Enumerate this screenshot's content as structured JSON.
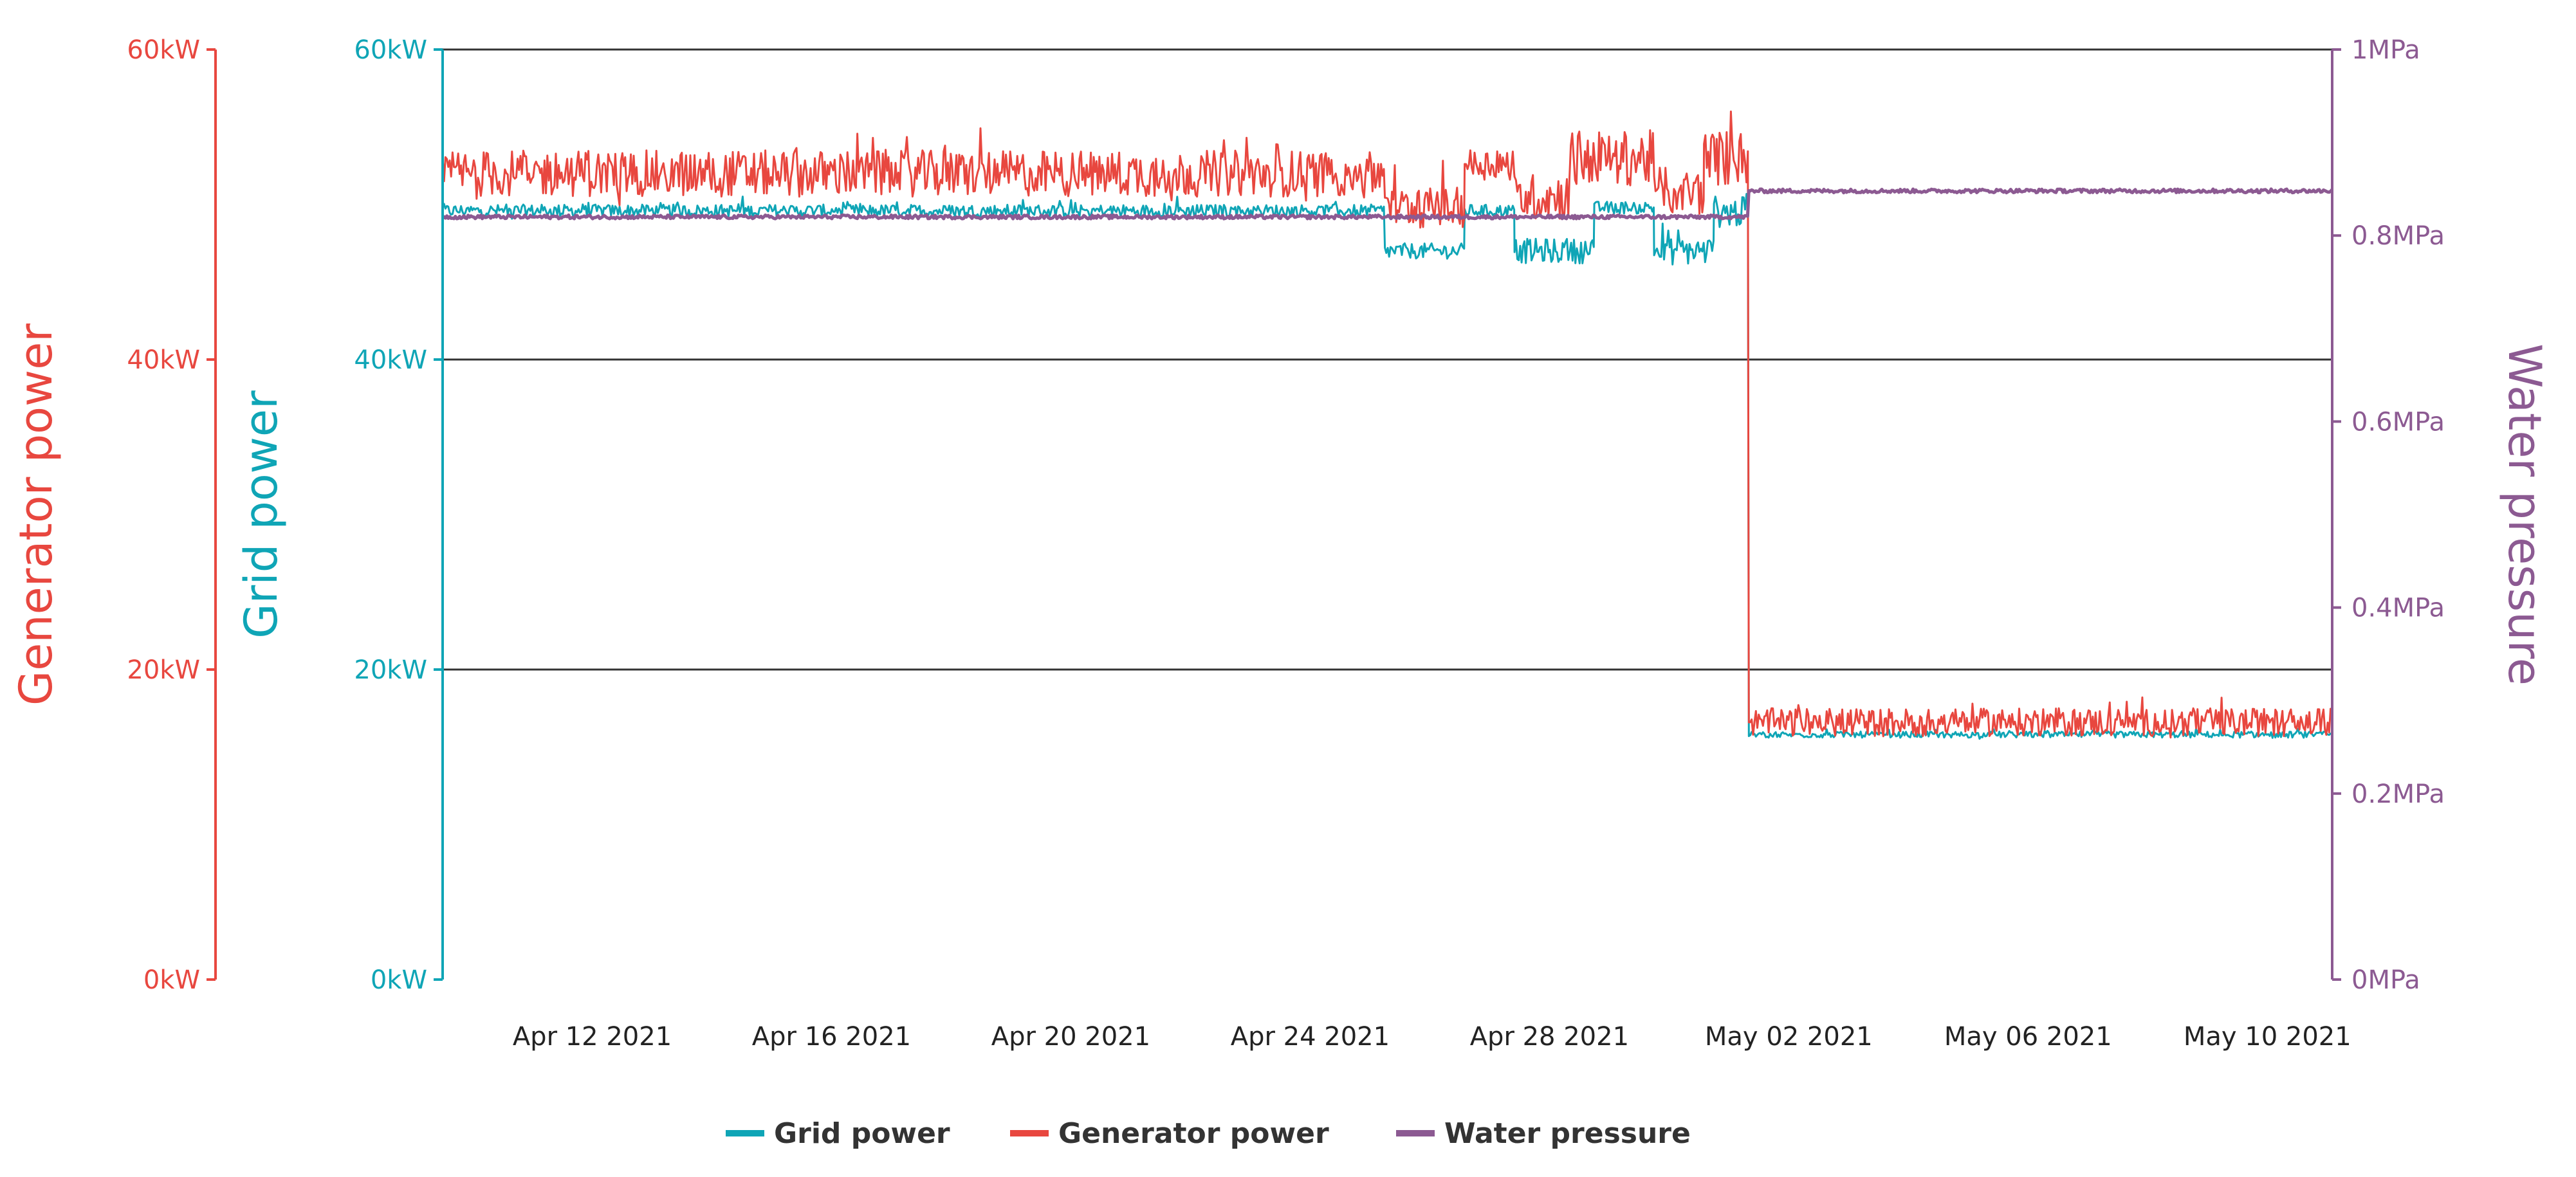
{
  "colors": {
    "generator": "#e8473f",
    "grid": "#0fa5b6",
    "pressure": "#8c5a92",
    "gridline": "#333333",
    "tick_text": "#222222"
  },
  "chart_data": {
    "type": "line",
    "title": "",
    "xlabel": "",
    "x_range": [
      "2021-04-09T12:00",
      "2021-05-11T02:00"
    ],
    "x_ticks": [
      "Apr 12 2021",
      "Apr 16 2021",
      "Apr 20 2021",
      "Apr 24 2021",
      "Apr 28 2021",
      "May 02 2021",
      "May 06 2021",
      "May 10 2021"
    ],
    "axes": {
      "generator": {
        "label": "Generator power",
        "range": [
          0,
          60
        ],
        "ticks": [
          "0kW",
          "20kW",
          "40kW",
          "60kW"
        ],
        "tick_values": [
          0,
          20,
          40,
          60
        ]
      },
      "grid": {
        "label": "Grid power",
        "range": [
          0,
          60
        ],
        "ticks": [
          "0kW",
          "20kW",
          "40kW",
          "60kW"
        ],
        "tick_values": [
          0,
          20,
          40,
          60
        ]
      },
      "pressure": {
        "label": "Water pressure",
        "range": [
          0,
          1
        ],
        "ticks": [
          "0MPa",
          "0.2MPa",
          "0.4MPa",
          "0.6MPa",
          "0.8MPa",
          "1MPa"
        ],
        "tick_values": [
          0,
          0.2,
          0.4,
          0.6,
          0.8,
          1
        ]
      }
    },
    "grid_lines": [
      20,
      40,
      60
    ],
    "series": [
      {
        "name": "Grid power",
        "axis": "grid",
        "color_key": "grid",
        "segments": [
          {
            "from": "2021-04-09T12:00",
            "to": "2021-04-25T06:00",
            "mean": 49.6,
            "jitter": 0.4
          },
          {
            "from": "2021-04-25T06:00",
            "to": "2021-04-26T14:00",
            "mean": 47.0,
            "jitter": 0.5
          },
          {
            "from": "2021-04-26T14:00",
            "to": "2021-04-27T10:00",
            "mean": 49.6,
            "jitter": 0.4
          },
          {
            "from": "2021-04-27T10:00",
            "to": "2021-04-28T18:00",
            "mean": 47.0,
            "jitter": 0.8
          },
          {
            "from": "2021-04-28T18:00",
            "to": "2021-04-29T18:00",
            "mean": 49.8,
            "jitter": 0.4
          },
          {
            "from": "2021-04-29T18:00",
            "to": "2021-04-30T18:00",
            "mean": 47.0,
            "jitter": 0.9
          },
          {
            "from": "2021-04-30T18:00",
            "to": "2021-05-01T08:00",
            "mean": 49.5,
            "jitter": 1.0
          },
          {
            "from": "2021-05-01T08:00",
            "to": "2021-05-11T02:00",
            "mean": 15.8,
            "jitter": 0.2
          }
        ]
      },
      {
        "name": "Generator power",
        "axis": "generator",
        "color_key": "generator",
        "segments": [
          {
            "from": "2021-04-09T12:00",
            "to": "2021-04-25T06:00",
            "mean": 52.0,
            "jitter": 1.5
          },
          {
            "from": "2021-04-25T06:00",
            "to": "2021-04-26T14:00",
            "mean": 49.8,
            "jitter": 1.3
          },
          {
            "from": "2021-04-26T14:00",
            "to": "2021-04-27T10:00",
            "mean": 52.6,
            "jitter": 1.0
          },
          {
            "from": "2021-04-27T10:00",
            "to": "2021-04-28T08:00",
            "mean": 50.5,
            "jitter": 1.5
          },
          {
            "from": "2021-04-28T08:00",
            "to": "2021-04-29T18:00",
            "mean": 53.0,
            "jitter": 1.8
          },
          {
            "from": "2021-04-29T18:00",
            "to": "2021-04-30T14:00",
            "mean": 50.8,
            "jitter": 1.5
          },
          {
            "from": "2021-04-30T14:00",
            "to": "2021-05-01T08:00",
            "mean": 53.0,
            "jitter": 1.8
          },
          {
            "from": "2021-05-01T08:00",
            "to": "2021-05-11T02:00",
            "mean": 16.6,
            "jitter": 0.9
          }
        ]
      },
      {
        "name": "Water pressure",
        "axis": "pressure",
        "color_key": "pressure",
        "segments": [
          {
            "from": "2021-04-09T12:00",
            "to": "2021-05-01T08:00",
            "mean": 0.82,
            "jitter": 0.002
          },
          {
            "from": "2021-05-01T08:00",
            "to": "2021-05-11T02:00",
            "mean": 0.848,
            "jitter": 0.002
          }
        ]
      }
    ],
    "legend": {
      "position": "bottom-center",
      "entries": [
        "Grid power",
        "Generator power",
        "Water pressure"
      ]
    }
  }
}
